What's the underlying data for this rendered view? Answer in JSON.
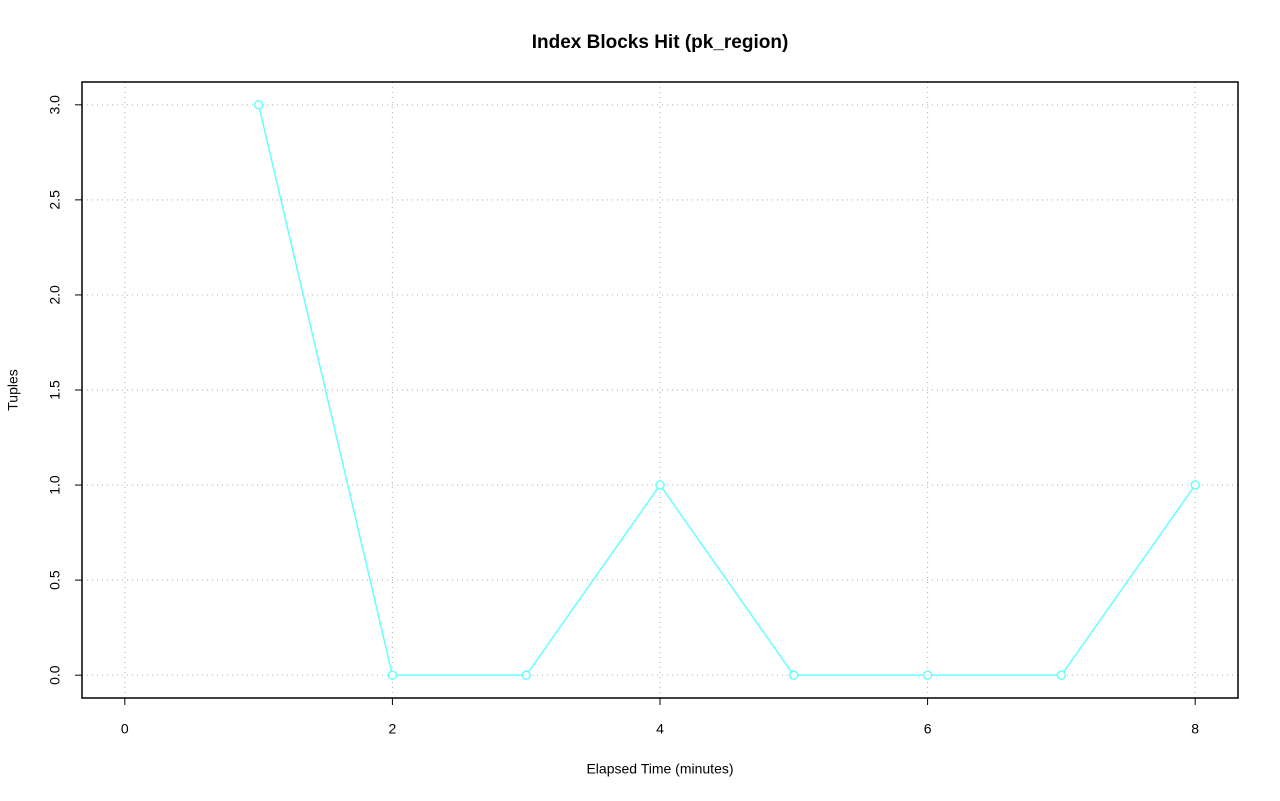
{
  "chart_data": {
    "type": "line",
    "title": "Index Blocks Hit (pk_region)",
    "x_label": "Elapsed Time (minutes)",
    "y_label": "Tuples",
    "x": [
      1,
      2,
      3,
      4,
      5,
      6,
      7,
      8
    ],
    "series": [
      {
        "color": "#66ffff",
        "values": [
          3,
          0,
          0,
          1,
          0,
          0,
          0,
          1
        ]
      }
    ],
    "xlim": [
      -0.32,
      8.32
    ],
    "xticks": [
      0,
      2,
      4,
      6,
      8
    ],
    "ylim": [
      -0.12,
      3.12
    ],
    "yticks": [
      {
        "value": 0,
        "label": "0.0"
      },
      0.5,
      {
        "value": 1,
        "label": "1.0"
      },
      1.5,
      {
        "value": 2,
        "label": "2.0"
      },
      2.5,
      {
        "value": 3,
        "label": "3.0"
      }
    ],
    "grid": true
  }
}
